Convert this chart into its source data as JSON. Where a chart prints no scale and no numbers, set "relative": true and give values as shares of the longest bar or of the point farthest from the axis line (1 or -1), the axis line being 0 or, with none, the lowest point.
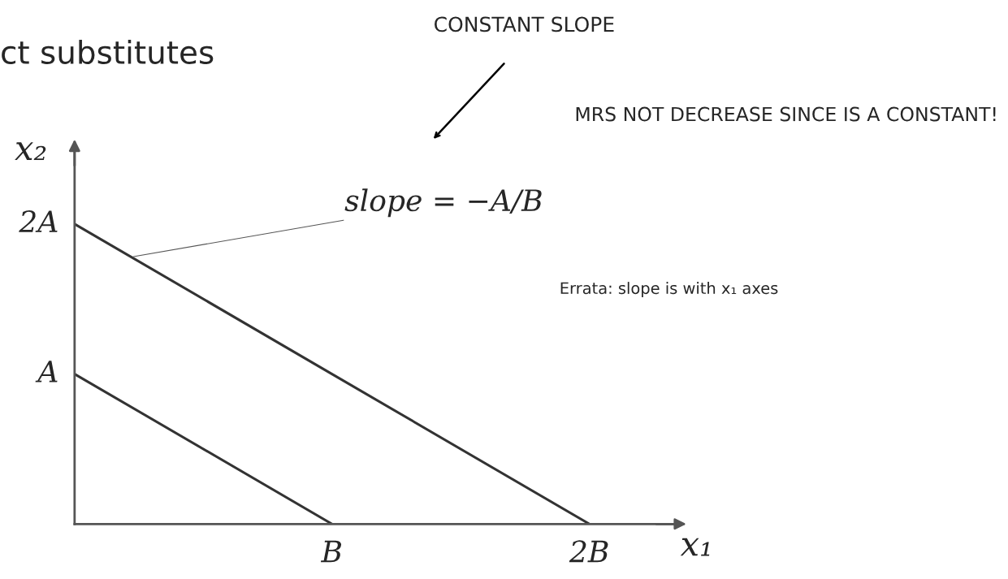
{
  "chart_data": {
    "type": "line",
    "title": "ct substitutes",
    "xlabel": "x₁",
    "ylabel": "x₂",
    "relative": true,
    "categories": [
      null,
      "B",
      "2B"
    ],
    "series": [
      {
        "values": [
          0.5,
          0,
          null
        ],
        "color": "#333333"
      },
      {
        "values": [
          1,
          0.5,
          0
        ],
        "color": "#333333"
      }
    ],
    "legend": false,
    "marker": "none",
    "line_style": "solid",
    "annotations": [
      "A",
      "2A",
      "slope = −A/B",
      "CONSTANT SLOPE",
      "MRS NOT DECREASE SINCE IS A CONSTANT!",
      "Errata: slope is with x₁ axes"
    ]
  }
}
